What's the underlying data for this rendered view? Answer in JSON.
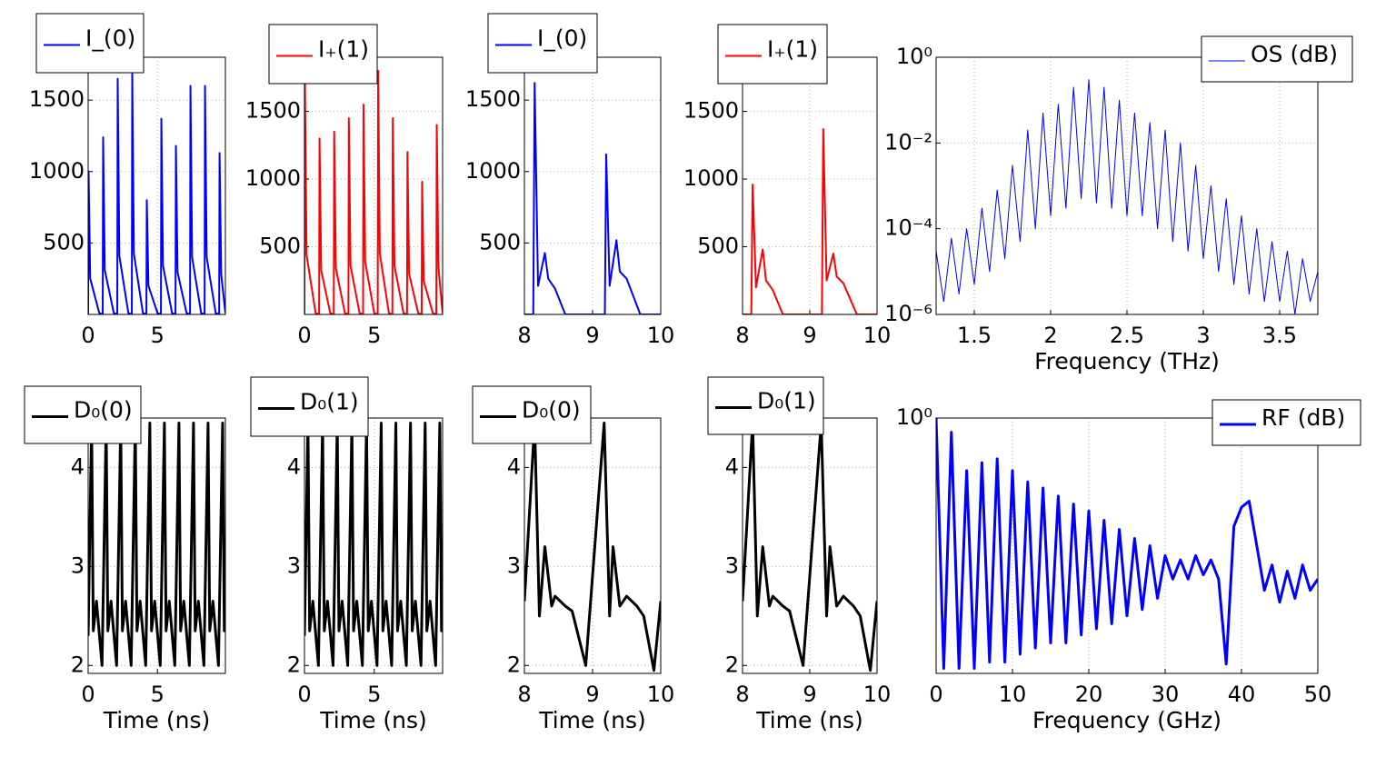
{
  "chart_data": [
    {
      "type": "line",
      "x": [
        0,
        0.03,
        0.15,
        0.8,
        1.05,
        1.08,
        1.2,
        1.85,
        2.1,
        2.13,
        2.25,
        2.9,
        3.15,
        3.18,
        3.3,
        3.95,
        4.2,
        4.23,
        4.35,
        5.0,
        5.25,
        5.28,
        5.4,
        6.05,
        6.3,
        6.33,
        6.45,
        7.1,
        7.35,
        7.38,
        7.5,
        8.15,
        8.4,
        8.43,
        8.55,
        9.2,
        9.45,
        9.48,
        9.6,
        9.9
      ],
      "series": [
        {
          "name": "I_(0)",
          "color": "#0000ff",
          "values": [
            0,
            1000,
            250,
            10,
            0,
            1240,
            310,
            10,
            0,
            1650,
            410,
            10,
            0,
            1700,
            425,
            10,
            0,
            800,
            200,
            10,
            0,
            1370,
            340,
            10,
            0,
            1180,
            295,
            10,
            0,
            1600,
            400,
            10,
            0,
            1600,
            400,
            10,
            0,
            1130,
            280,
            10
          ]
        }
      ],
      "xlim": [
        0,
        9.9
      ],
      "xticks": [
        0,
        5
      ],
      "ylim": [
        0,
        1800
      ],
      "yticks": [
        500,
        1000,
        1500
      ],
      "grid": true,
      "legend": "upper left"
    },
    {
      "type": "line",
      "x": [
        0,
        0.03,
        0.15,
        0.8,
        1.05,
        1.08,
        1.2,
        1.85,
        2.1,
        2.13,
        2.25,
        2.9,
        3.15,
        3.18,
        3.3,
        3.95,
        4.2,
        4.23,
        4.35,
        5.0,
        5.25,
        5.28,
        5.4,
        6.05,
        6.3,
        6.33,
        6.45,
        7.1,
        7.35,
        7.38,
        7.5,
        8.15,
        8.4,
        8.43,
        8.55,
        9.2,
        9.45,
        9.48,
        9.6,
        9.9
      ],
      "series": [
        {
          "name": "I₊(1)",
          "color": "#ff0000",
          "values": [
            0,
            1750,
            440,
            10,
            0,
            1300,
            325,
            10,
            0,
            1350,
            340,
            10,
            0,
            1450,
            360,
            10,
            0,
            1550,
            390,
            10,
            0,
            1800,
            450,
            10,
            0,
            1450,
            360,
            10,
            0,
            1200,
            300,
            10,
            0,
            980,
            245,
            10,
            0,
            1400,
            350,
            10
          ]
        }
      ],
      "xlim": [
        0,
        9.9
      ],
      "xticks": [
        0,
        5
      ],
      "ylim": [
        0,
        1900
      ],
      "yticks": [
        500,
        1000,
        1500
      ],
      "grid": true,
      "legend": "upper left"
    },
    {
      "type": "line",
      "x": [
        8,
        8.13,
        8.15,
        8.2,
        8.3,
        8.35,
        8.45,
        8.6,
        9.1,
        9.18,
        9.2,
        9.25,
        9.35,
        9.4,
        9.5,
        9.7,
        10
      ],
      "series": [
        {
          "name": "I_(0)",
          "color": "#0000ff",
          "values": [
            0,
            0,
            1620,
            200,
            430,
            250,
            180,
            0,
            0,
            0,
            1120,
            200,
            520,
            300,
            250,
            0,
            0
          ]
        }
      ],
      "xlim": [
        8,
        10
      ],
      "xticks": [
        8,
        9,
        10
      ],
      "ylim": [
        0,
        1800
      ],
      "yticks": [
        500,
        1000,
        1500
      ],
      "grid": true,
      "legend": "upper left"
    },
    {
      "type": "line",
      "x": [
        8,
        8.13,
        8.15,
        8.2,
        8.3,
        8.35,
        8.45,
        8.6,
        9.1,
        9.18,
        9.2,
        9.25,
        9.35,
        9.4,
        9.5,
        9.7,
        10
      ],
      "series": [
        {
          "name": "I₊(1)",
          "color": "#ff0000",
          "values": [
            0,
            0,
            960,
            200,
            480,
            250,
            180,
            0,
            0,
            0,
            1370,
            250,
            450,
            280,
            230,
            0,
            0
          ]
        }
      ],
      "xlim": [
        8,
        10
      ],
      "xticks": [
        8,
        9,
        10
      ],
      "ylim": [
        0,
        1900
      ],
      "yticks": [
        500,
        1000,
        1500
      ],
      "grid": true,
      "legend": "upper left"
    },
    {
      "type": "line",
      "xlabel": "Frequency (THz)",
      "log_y": true,
      "x": [
        1.25,
        1.3,
        1.35,
        1.4,
        1.45,
        1.5,
        1.55,
        1.6,
        1.65,
        1.7,
        1.75,
        1.8,
        1.85,
        1.9,
        1.95,
        2.0,
        2.05,
        2.1,
        2.15,
        2.2,
        2.25,
        2.3,
        2.35,
        2.4,
        2.45,
        2.5,
        2.55,
        2.6,
        2.65,
        2.7,
        2.75,
        2.8,
        2.85,
        2.9,
        2.95,
        3.0,
        3.05,
        3.1,
        3.15,
        3.2,
        3.25,
        3.3,
        3.35,
        3.4,
        3.45,
        3.5,
        3.55,
        3.6,
        3.65,
        3.7,
        3.75
      ],
      "series": [
        {
          "name": "OS (dB)",
          "color": "#0000ff",
          "values": [
            3e-05,
            2e-06,
            6e-05,
            3e-06,
            0.0001,
            5e-06,
            0.0003,
            1e-05,
            0.0008,
            2e-05,
            0.003,
            5e-05,
            0.02,
            0.0001,
            0.05,
            0.0002,
            0.08,
            0.0003,
            0.2,
            0.0005,
            0.3,
            0.0004,
            0.2,
            0.0003,
            0.1,
            0.0002,
            0.05,
            0.0002,
            0.03,
            0.0001,
            0.02,
            5e-05,
            0.01,
            3e-05,
            0.003,
            2e-05,
            0.001,
            1e-05,
            0.0005,
            5e-06,
            0.0002,
            3e-06,
            0.0001,
            2e-06,
            5e-05,
            2e-06,
            3e-05,
            1e-06,
            2e-05,
            2e-06,
            1e-05
          ]
        }
      ],
      "xlim": [
        1.25,
        3.75
      ],
      "xticks": [
        1.5,
        2,
        2.5,
        3,
        3.5
      ],
      "ylim": [
        1e-06,
        1
      ],
      "yticks": [
        {
          "value": 1e-06,
          "label": "10⁻⁶"
        },
        {
          "value": 0.0001,
          "label": "10⁻⁴"
        },
        {
          "value": 0.01,
          "label": "10⁻²"
        },
        {
          "value": 1,
          "label": "10⁰"
        }
      ],
      "grid": true,
      "legend": "upper right"
    },
    {
      "type": "line",
      "xlabel": "Time (ns)",
      "x": [
        0,
        0.25,
        0.37,
        0.6,
        1.0,
        1.3,
        1.42,
        1.65,
        2.05,
        2.35,
        2.47,
        2.7,
        3.1,
        3.4,
        3.52,
        3.75,
        4.15,
        4.45,
        4.57,
        4.8,
        5.2,
        5.5,
        5.62,
        5.85,
        6.25,
        6.55,
        6.67,
        6.9,
        7.3,
        7.6,
        7.72,
        7.95,
        8.35,
        8.65,
        8.77,
        9.0,
        9.4,
        9.7,
        9.82,
        9.9
      ],
      "series": [
        {
          "name": "D₀(0)",
          "color": "#000000",
          "values": [
            2.3,
            4.45,
            2.35,
            2.65,
            2.0,
            4.45,
            2.35,
            2.65,
            2.0,
            4.45,
            2.35,
            2.65,
            2.0,
            4.45,
            2.35,
            2.65,
            2.0,
            4.45,
            2.35,
            2.65,
            2.0,
            4.45,
            2.35,
            2.65,
            2.0,
            4.45,
            2.35,
            2.65,
            2.0,
            4.45,
            2.35,
            2.65,
            2.0,
            4.45,
            2.35,
            2.65,
            2.0,
            4.45,
            2.35,
            2.65
          ]
        }
      ],
      "xlim": [
        0,
        9.9
      ],
      "xticks": [
        0,
        5
      ],
      "ylim": [
        1.92,
        4.5
      ],
      "yticks": [
        2,
        3,
        4
      ],
      "grid": true,
      "legend": "upper left"
    },
    {
      "type": "line",
      "xlabel": "Time (ns)",
      "x": [
        0,
        0.25,
        0.37,
        0.6,
        1.0,
        1.3,
        1.42,
        1.65,
        2.05,
        2.35,
        2.47,
        2.7,
        3.1,
        3.4,
        3.52,
        3.75,
        4.15,
        4.45,
        4.57,
        4.8,
        5.2,
        5.5,
        5.62,
        5.85,
        6.25,
        6.55,
        6.67,
        6.9,
        7.3,
        7.6,
        7.72,
        7.95,
        8.35,
        8.65,
        8.77,
        9.0,
        9.4,
        9.7,
        9.82,
        9.9
      ],
      "series": [
        {
          "name": "D₀(1)",
          "color": "#000000",
          "values": [
            2.3,
            4.45,
            2.35,
            2.65,
            2.0,
            4.45,
            2.35,
            2.65,
            2.0,
            4.45,
            2.35,
            2.65,
            2.0,
            4.45,
            2.35,
            2.65,
            2.0,
            4.45,
            2.35,
            2.65,
            2.0,
            4.45,
            2.35,
            2.65,
            2.0,
            4.45,
            2.35,
            2.65,
            2.0,
            4.45,
            2.35,
            2.65,
            2.0,
            4.45,
            2.35,
            2.65,
            2.0,
            4.45,
            2.35,
            2.65
          ]
        }
      ],
      "xlim": [
        0,
        9.9
      ],
      "xticks": [
        0,
        5
      ],
      "ylim": [
        1.92,
        4.5
      ],
      "yticks": [
        2,
        3,
        4
      ],
      "grid": true,
      "legend": "upper left"
    },
    {
      "type": "line",
      "xlabel": "Time (ns)",
      "x": [
        8,
        8.15,
        8.22,
        8.3,
        8.4,
        8.45,
        8.6,
        8.7,
        8.9,
        9.17,
        9.25,
        9.3,
        9.4,
        9.5,
        9.65,
        9.75,
        9.9,
        10
      ],
      "series": [
        {
          "name": "D₀(0)",
          "color": "#000000",
          "values": [
            2.65,
            4.45,
            2.5,
            3.2,
            2.6,
            2.7,
            2.6,
            2.55,
            2.0,
            4.45,
            2.5,
            3.2,
            2.6,
            2.7,
            2.6,
            2.5,
            1.95,
            2.65
          ]
        }
      ],
      "xlim": [
        8,
        10
      ],
      "xticks": [
        8,
        9,
        10
      ],
      "ylim": [
        1.92,
        4.5
      ],
      "yticks": [
        2,
        3,
        4
      ],
      "grid": true,
      "legend": "upper left"
    },
    {
      "type": "line",
      "xlabel": "Time (ns)",
      "x": [
        8,
        8.15,
        8.22,
        8.3,
        8.4,
        8.45,
        8.6,
        8.7,
        8.9,
        9.17,
        9.25,
        9.3,
        9.4,
        9.5,
        9.65,
        9.75,
        9.9,
        10
      ],
      "series": [
        {
          "name": "D₀(1)",
          "color": "#000000",
          "values": [
            2.65,
            4.45,
            2.5,
            3.2,
            2.6,
            2.7,
            2.6,
            2.55,
            2.0,
            4.45,
            2.5,
            3.2,
            2.6,
            2.7,
            2.6,
            2.5,
            1.95,
            2.65
          ]
        }
      ],
      "xlim": [
        8,
        10
      ],
      "xticks": [
        8,
        9,
        10
      ],
      "ylim": [
        1.92,
        4.5
      ],
      "yticks": [
        2,
        3,
        4
      ],
      "grid": true,
      "legend": "upper left"
    },
    {
      "type": "line",
      "xlabel": "Frequency (GHz)",
      "log_y": true,
      "x": [
        0,
        1,
        2,
        3,
        4,
        5,
        6,
        7,
        8,
        9,
        10,
        11,
        12,
        13,
        14,
        15,
        16,
        17,
        18,
        19,
        20,
        21,
        22,
        23,
        24,
        25,
        26,
        27,
        28,
        29,
        30,
        31,
        32,
        33,
        34,
        35,
        36,
        37,
        38,
        39,
        40,
        41,
        42,
        43,
        44,
        45,
        46,
        47,
        48,
        49,
        50
      ],
      "series": [
        {
          "name": "RF (dB)",
          "color": "#0000ff",
          "values": [
            1,
            0.00012,
            0.6,
            0.00012,
            0.15,
            0.00012,
            0.2,
            0.00015,
            0.23,
            0.00015,
            0.15,
            0.0002,
            0.1,
            0.00025,
            0.08,
            0.0003,
            0.06,
            0.0003,
            0.045,
            0.0004,
            0.035,
            0.0005,
            0.025,
            0.0006,
            0.018,
            0.0008,
            0.013,
            0.001,
            0.01,
            0.0015,
            0.007,
            0.003,
            0.006,
            0.003,
            0.007,
            0.0035,
            0.006,
            0.003,
            0.00014,
            0.02,
            0.04,
            0.05,
            0.01,
            0.002,
            0.005,
            0.0013,
            0.004,
            0.0015,
            0.005,
            0.002,
            0.003
          ]
        }
      ],
      "xlim": [
        0,
        50
      ],
      "xticks": [
        0,
        10,
        20,
        30,
        40,
        50
      ],
      "ylim": [
        0.0001,
        1
      ],
      "yticks": [
        {
          "value": 1,
          "label": "10⁰"
        }
      ],
      "grid": true,
      "legend": "upper right"
    }
  ]
}
